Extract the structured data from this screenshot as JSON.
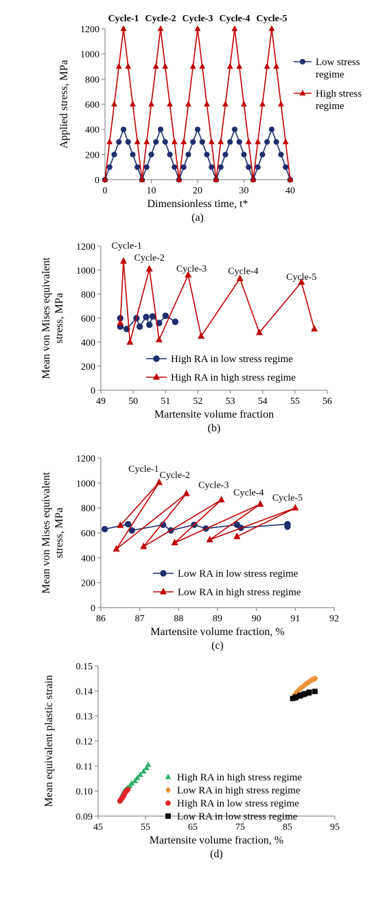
{
  "chart_data": [
    {
      "panel": "(a)",
      "type": "line",
      "xlabel": "Dimensionless time, t*",
      "ylabel": "Applied stress, MPa",
      "xlim": [
        0,
        40
      ],
      "ylim": [
        0,
        1200
      ],
      "xticks": [
        0,
        10,
        20,
        30,
        40
      ],
      "yticks": [
        0,
        200,
        400,
        600,
        800,
        1000,
        1200
      ],
      "annotations": [
        "Cycle-1",
        "Cycle-2",
        "Cycle-3",
        "Cycle-4",
        "Cycle-5"
      ],
      "annotation_x": [
        4,
        12,
        20,
        28,
        36
      ],
      "legend_position": "right",
      "series": [
        {
          "name": "Low stress regime",
          "marker": "circle",
          "color": "#1f2f6e",
          "x": [
            0,
            1,
            2,
            3,
            4,
            5,
            6,
            7,
            8,
            9,
            10,
            11,
            12,
            13,
            14,
            15,
            16,
            17,
            18,
            19,
            20,
            21,
            22,
            23,
            24,
            25,
            26,
            27,
            28,
            29,
            30,
            31,
            32,
            33,
            34,
            35,
            36,
            37,
            38,
            39,
            40
          ],
          "y": [
            0,
            100,
            200,
            300,
            400,
            300,
            200,
            100,
            0,
            100,
            200,
            300,
            400,
            300,
            200,
            100,
            0,
            100,
            200,
            300,
            400,
            300,
            200,
            100,
            0,
            100,
            200,
            300,
            400,
            300,
            200,
            100,
            0,
            100,
            200,
            300,
            400,
            300,
            200,
            100,
            0
          ]
        },
        {
          "name": "High stress regime",
          "marker": "triangle",
          "color": "#c00000",
          "x": [
            0,
            1,
            2,
            3,
            4,
            5,
            6,
            7,
            8,
            9,
            10,
            11,
            12,
            13,
            14,
            15,
            16,
            17,
            18,
            19,
            20,
            21,
            22,
            23,
            24,
            25,
            26,
            27,
            28,
            29,
            30,
            31,
            32,
            33,
            34,
            35,
            36,
            37,
            38,
            39,
            40
          ],
          "y": [
            0,
            300,
            600,
            900,
            1200,
            900,
            600,
            300,
            0,
            300,
            600,
            900,
            1200,
            900,
            600,
            300,
            0,
            300,
            600,
            900,
            1200,
            900,
            600,
            300,
            0,
            300,
            600,
            900,
            1200,
            900,
            600,
            300,
            0,
            300,
            600,
            900,
            1200,
            900,
            600,
            300,
            0
          ]
        }
      ]
    },
    {
      "panel": "(b)",
      "type": "line",
      "xlabel": "Martensite volume fraction",
      "ylabel": "Mean von Mises equivalent stress, MPa",
      "xlim": [
        49,
        56
      ],
      "ylim": [
        0,
        1200
      ],
      "xticks": [
        49,
        50,
        51,
        52,
        53,
        54,
        55,
        56
      ],
      "yticks": [
        0,
        200,
        400,
        600,
        800,
        1000,
        1200
      ],
      "annotations": [
        "Cycle-1",
        "Cycle-2",
        "Cycle-3",
        "Cycle-4",
        "Cycle-5"
      ],
      "annotation_x": [
        49.8,
        50.5,
        51.8,
        53.4,
        55.2
      ],
      "annotation_y": [
        1180,
        1080,
        990,
        970,
        920
      ],
      "legend_position": "bottom-right",
      "series": [
        {
          "name": "High RA in low stress regime",
          "marker": "circle",
          "color": "#1f2f6e",
          "x": [
            49.6,
            49.6,
            49.8,
            50.1,
            50.2,
            50.4,
            50.5,
            50.6,
            50.8,
            51.0,
            51.3
          ],
          "y": [
            600,
            530,
            510,
            600,
            530,
            610,
            545,
            615,
            560,
            620,
            570
          ]
        },
        {
          "name": "High RA in high stress regime",
          "marker": "triangle",
          "color": "#c00000",
          "x": [
            49.6,
            49.7,
            49.9,
            50.5,
            50.8,
            51.7,
            52.1,
            53.3,
            53.9,
            55.2,
            55.6
          ],
          "y": [
            560,
            1075,
            400,
            1010,
            420,
            960,
            450,
            930,
            480,
            900,
            510
          ]
        }
      ]
    },
    {
      "panel": "(c)",
      "type": "line",
      "xlabel": "Martensite volume fraction, %",
      "ylabel": "Mean von Mises equivalent stress, MPa",
      "xlim": [
        86,
        92
      ],
      "ylim": [
        0,
        1200
      ],
      "xticks": [
        86,
        87,
        88,
        89,
        90,
        91,
        92
      ],
      "xticklabels": [
        "86",
        "87",
        "88",
        "89",
        "90",
        "91",
        "92"
      ],
      "yticks": [
        0,
        200,
        400,
        600,
        800,
        1000,
        1200
      ],
      "annotations": [
        "Cycle-1",
        "Cycle-2",
        "Cycle-3",
        "Cycle-4",
        "Cycle-5"
      ],
      "annotation_x": [
        87.1,
        87.9,
        88.9,
        89.8,
        90.8
      ],
      "annotation_y": [
        1090,
        1040,
        960,
        900,
        860
      ],
      "legend_position": "bottom-right",
      "series": [
        {
          "name": "Low RA in low stress regime",
          "marker": "circle",
          "color": "#1f2f6e",
          "x": [
            86.1,
            86.7,
            86.8,
            87.6,
            87.8,
            88.4,
            88.7,
            89.5,
            89.6,
            90.8,
            90.8
          ],
          "y": [
            630,
            670,
            620,
            665,
            620,
            665,
            635,
            665,
            640,
            670,
            650
          ]
        },
        {
          "name": "Low RA in high stress regime",
          "marker": "triangle",
          "color": "#c00000",
          "x": [
            86.5,
            87.5,
            86.4,
            88.2,
            87.1,
            89.1,
            87.9,
            90.1,
            88.8,
            91.0,
            89.5
          ],
          "y": [
            660,
            1005,
            470,
            915,
            490,
            865,
            520,
            830,
            545,
            800,
            570
          ]
        }
      ]
    },
    {
      "panel": "(d)",
      "type": "scatter",
      "xlabel": "Martensite volume fraction, %",
      "ylabel": "Mean equivalent plastic strain",
      "xlim": [
        45,
        95
      ],
      "ylim": [
        0.09,
        0.15
      ],
      "xticks": [
        45,
        55,
        65,
        75,
        85,
        95
      ],
      "yticks": [
        0.09,
        0.1,
        0.11,
        0.12,
        0.13,
        0.14,
        0.15
      ],
      "yticklabels": [
        "0.09",
        "0.10",
        "0.11",
        "0.12",
        "0.13",
        "0.14",
        "0.15"
      ],
      "legend_position": "bottom-right",
      "series": [
        {
          "name": "High RA in high stress regime",
          "marker": "triangle",
          "color": "#2fae66",
          "x": [
            49.6,
            49.8,
            49.9,
            50.1,
            50.3,
            50.5,
            50.8,
            51.2,
            51.7,
            52.1,
            52.8,
            53.3,
            53.9,
            54.6,
            55.2,
            55.6
          ],
          "y": [
            0.0965,
            0.0972,
            0.0978,
            0.0985,
            0.0992,
            0.0998,
            0.1005,
            0.1012,
            0.102,
            0.103,
            0.104,
            0.1052,
            0.1065,
            0.1078,
            0.1092,
            0.1105
          ]
        },
        {
          "name": "Low RA in high stress regime",
          "marker": "diamond",
          "color": "#e8943a",
          "x": [
            86.5,
            86.9,
            87.3,
            87.7,
            88.1,
            88.5,
            88.9,
            89.3,
            89.7,
            90.1,
            90.5,
            90.9
          ],
          "y": [
            0.1385,
            0.1395,
            0.1402,
            0.141,
            0.1415,
            0.1422,
            0.1428,
            0.1433,
            0.1438,
            0.1443,
            0.1447,
            0.145
          ]
        },
        {
          "name": "High RA in low stress regime",
          "marker": "circle",
          "color": "#e8252b",
          "x": [
            49.6,
            49.7,
            49.8,
            49.9,
            50.1,
            50.2,
            50.4,
            50.5,
            50.6,
            50.8,
            51.0,
            51.3
          ],
          "y": [
            0.096,
            0.0962,
            0.0965,
            0.0968,
            0.0972,
            0.0976,
            0.0981,
            0.0986,
            0.0991,
            0.0996,
            0.1001,
            0.1006
          ]
        },
        {
          "name": "Low RA in low stress regime",
          "marker": "square",
          "color": "#000000",
          "x": [
            86.1,
            86.7,
            86.8,
            87.6,
            87.8,
            88.4,
            88.7,
            89.5,
            89.6,
            90.8
          ],
          "y": [
            0.137,
            0.1373,
            0.1376,
            0.138,
            0.1383,
            0.1386,
            0.1389,
            0.1392,
            0.1395,
            0.1398
          ]
        }
      ]
    }
  ]
}
